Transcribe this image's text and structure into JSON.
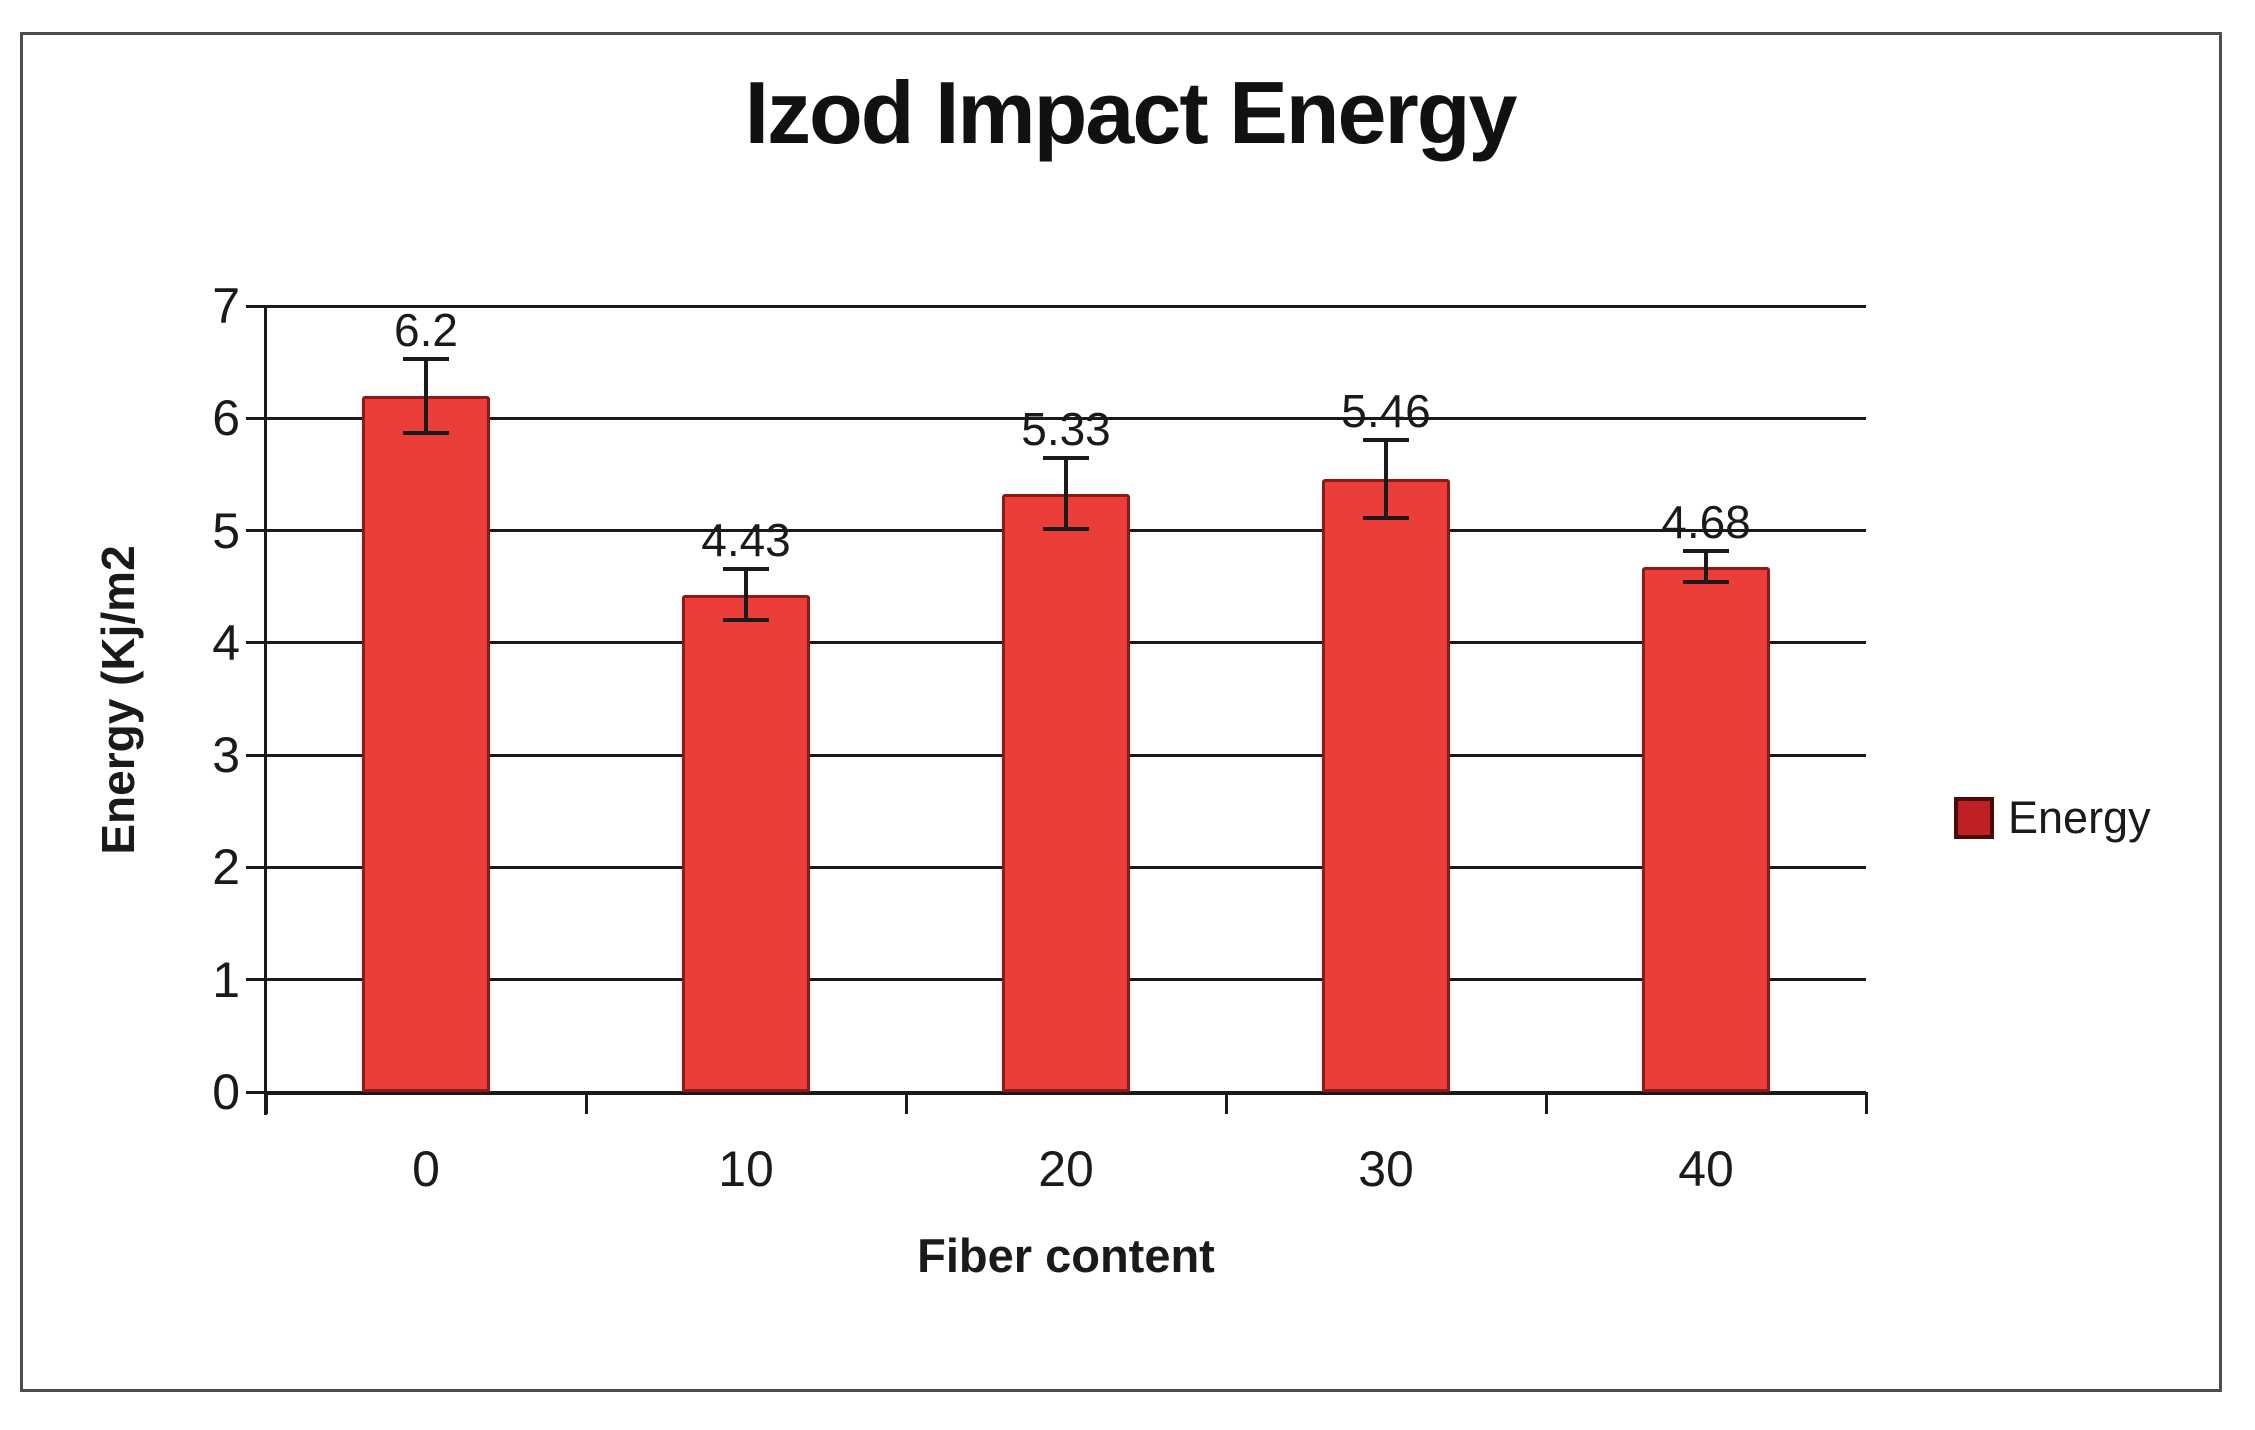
{
  "chart_data": {
    "type": "bar",
    "title": "Izod Impact Energy",
    "xlabel": "Fiber content",
    "ylabel": "Energy (Kj/m2",
    "categories": [
      "0",
      "10",
      "20",
      "30",
      "40"
    ],
    "series": [
      {
        "name": "Energy",
        "values": [
          6.2,
          4.43,
          5.33,
          5.46,
          4.68
        ],
        "errors": [
          0.33,
          0.23,
          0.32,
          0.35,
          0.14
        ]
      }
    ],
    "value_labels": [
      "6.2",
      "4.43",
      "5.33",
      "5.46",
      "4.68"
    ],
    "ylim": [
      0,
      7
    ],
    "ytick_step": 1,
    "yticks": [
      "0",
      "1",
      "2",
      "3",
      "4",
      "5",
      "6",
      "7"
    ],
    "grid": "horizontal",
    "legend_position": "right",
    "colors": {
      "bar_fill": "#EC3E39",
      "bar_border": "#8C1A18",
      "legend_fill": "#BE2024",
      "legend_border": "#4A0A0A",
      "axis": "#1a1a1a",
      "frame_border": "#4d4d4d",
      "text": "#1a1a1a"
    }
  }
}
